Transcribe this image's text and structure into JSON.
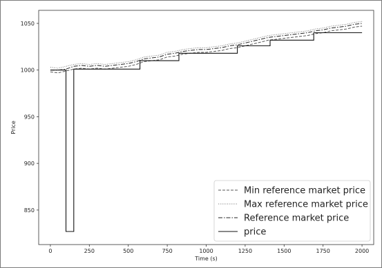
{
  "chart_data": {
    "type": "line",
    "xlabel": "Time (s)",
    "ylabel": "Price",
    "xlim": [
      -75,
      2075
    ],
    "ylim": [
      813,
      1064
    ],
    "xticks": [
      0,
      250,
      500,
      750,
      1000,
      1250,
      1500,
      1750,
      2000
    ],
    "yticks": [
      850,
      900,
      950,
      1000,
      1050
    ],
    "grid": false,
    "legend_position": "lower-right",
    "series": [
      {
        "name": "Min reference market price",
        "style": "dashed",
        "color": "#555555",
        "x": [
          0,
          50,
          100,
          150,
          200,
          250,
          300,
          350,
          400,
          450,
          500,
          550,
          600,
          650,
          700,
          750,
          800,
          850,
          900,
          950,
          1000,
          1050,
          1100,
          1150,
          1200,
          1250,
          1300,
          1350,
          1400,
          1450,
          1500,
          1550,
          1600,
          1650,
          1700,
          1750,
          1800,
          1850,
          1900,
          1950,
          2000
        ],
        "y": [
          998,
          997,
          999,
          1001,
          1002,
          1001,
          1002,
          1001,
          1002,
          1003,
          1004,
          1006,
          1009,
          1010,
          1011,
          1014,
          1015,
          1017,
          1018,
          1019,
          1019,
          1020,
          1021,
          1023,
          1024,
          1026,
          1028,
          1030,
          1032,
          1033,
          1034,
          1035,
          1036,
          1037,
          1039,
          1040,
          1042,
          1043,
          1044,
          1046,
          1047
        ]
      },
      {
        "name": "Max reference market price",
        "style": "dotted",
        "color": "#777777",
        "x": [
          0,
          50,
          100,
          150,
          200,
          250,
          300,
          350,
          400,
          450,
          500,
          550,
          600,
          650,
          700,
          750,
          800,
          850,
          900,
          950,
          1000,
          1050,
          1100,
          1150,
          1200,
          1250,
          1300,
          1350,
          1400,
          1450,
          1500,
          1550,
          1600,
          1650,
          1700,
          1750,
          1800,
          1850,
          1900,
          1950,
          2000
        ],
        "y": [
          1003,
          1002,
          1004,
          1006,
          1007,
          1006,
          1007,
          1006,
          1007,
          1008,
          1009,
          1011,
          1014,
          1015,
          1016,
          1019,
          1020,
          1022,
          1023,
          1024,
          1024,
          1025,
          1026,
          1028,
          1029,
          1031,
          1033,
          1035,
          1037,
          1038,
          1039,
          1040,
          1041,
          1042,
          1044,
          1045,
          1047,
          1048,
          1049,
          1051,
          1052
        ]
      },
      {
        "name": "Reference market price",
        "style": "dashdot",
        "color": "#222222",
        "x": [
          0,
          50,
          100,
          150,
          200,
          250,
          300,
          350,
          400,
          450,
          500,
          550,
          600,
          650,
          700,
          750,
          800,
          850,
          900,
          950,
          1000,
          1050,
          1100,
          1150,
          1200,
          1250,
          1300,
          1350,
          1400,
          1450,
          1500,
          1550,
          1600,
          1650,
          1700,
          1750,
          1800,
          1850,
          1900,
          1950,
          2000
        ],
        "y": [
          1000,
          1000,
          1001,
          1004,
          1005,
          1004,
          1005,
          1004,
          1005,
          1006,
          1007,
          1009,
          1012,
          1013,
          1014,
          1017,
          1018,
          1020,
          1021,
          1022,
          1022,
          1023,
          1024,
          1026,
          1027,
          1029,
          1031,
          1033,
          1035,
          1036,
          1037,
          1038,
          1039,
          1040,
          1042,
          1043,
          1045,
          1046,
          1047,
          1049,
          1050
        ]
      },
      {
        "name": "price",
        "style": "solid",
        "color": "#111111",
        "x": [
          0,
          100,
          100,
          150,
          150,
          575,
          575,
          825,
          825,
          1020,
          1020,
          1200,
          1200,
          1410,
          1410,
          1690,
          1690,
          2000
        ],
        "y": [
          1000,
          1000,
          827,
          827,
          1001,
          1001,
          1010,
          1010,
          1018,
          1018,
          1018,
          1018,
          1026,
          1026,
          1032,
          1032,
          1040,
          1040
        ]
      }
    ]
  }
}
